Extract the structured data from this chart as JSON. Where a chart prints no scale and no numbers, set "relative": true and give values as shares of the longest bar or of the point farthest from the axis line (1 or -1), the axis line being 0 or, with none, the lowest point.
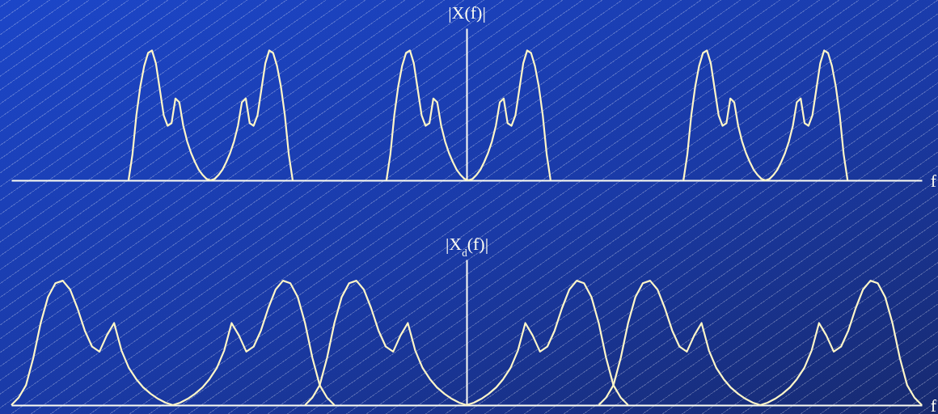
{
  "chart_data": [
    {
      "type": "line",
      "relative": true,
      "ylabel": "|X(f)|",
      "xlabel": "f",
      "tick_labels": false,
      "grid": false,
      "marker": "none",
      "line_style": "solid",
      "categories": [
        null,
        null,
        null,
        null,
        null,
        null,
        null,
        null,
        null,
        null,
        null,
        null,
        null,
        null,
        null,
        null,
        null,
        null,
        null,
        null,
        null,
        null,
        null,
        null,
        null,
        null,
        null,
        null,
        null,
        null,
        null,
        null,
        null,
        null,
        null,
        null,
        null,
        null,
        null,
        null,
        null,
        null,
        null,
        null,
        null,
        null,
        null,
        null,
        null,
        null,
        null,
        null,
        null,
        null,
        null,
        null,
        null,
        null,
        null,
        null,
        null,
        null,
        null,
        null,
        null,
        null,
        null,
        null,
        null,
        null,
        null,
        null,
        null,
        null,
        null,
        null,
        null,
        null,
        null,
        null,
        null,
        null,
        null,
        null,
        null,
        null,
        null,
        null,
        null,
        null,
        null,
        null,
        null,
        null,
        null,
        null,
        null,
        null,
        null,
        null,
        null,
        null,
        null,
        null,
        null,
        null,
        null,
        null,
        null,
        null,
        null,
        null,
        null,
        null,
        null,
        null,
        null,
        null,
        null,
        null,
        null,
        null,
        null,
        null,
        null,
        null,
        null,
        null,
        null,
        null,
        null,
        null,
        null,
        null,
        null,
        null,
        null,
        null,
        null,
        null,
        null,
        null,
        null,
        null,
        null,
        null,
        null,
        null,
        null,
        null,
        null,
        null,
        null,
        null,
        null,
        null,
        null,
        null,
        null,
        null,
        null,
        null,
        null,
        null,
        null,
        null,
        null,
        null,
        null,
        null,
        null,
        null,
        null,
        null,
        null,
        null,
        null,
        null,
        null,
        null,
        null,
        null,
        null,
        null,
        null,
        null,
        null,
        null,
        null,
        null,
        null,
        null,
        null,
        null,
        null,
        null,
        null,
        null,
        null,
        null,
        null,
        null,
        null,
        null,
        null,
        null,
        null,
        null,
        null,
        null,
        null,
        null,
        null,
        null,
        null,
        null,
        null,
        null,
        null,
        null,
        null,
        null,
        null,
        null,
        null,
        null,
        null,
        null,
        null,
        null,
        null,
        null,
        null,
        null
      ],
      "series": [
        {
          "color": "#fff6c8",
          "values": [
            null,
            null,
            null,
            null,
            null,
            null,
            null,
            null,
            null,
            null,
            null,
            null,
            null,
            null,
            null,
            null,
            null,
            null,
            null,
            null,
            null,
            null,
            null,
            null,
            null,
            null,
            null,
            null,
            null,
            null,
            0,
            0.2,
            0.5,
            0.72,
            0.88,
            0.98,
            1.0,
            0.9,
            0.7,
            0.5,
            0.42,
            0.44,
            0.63,
            0.6,
            0.42,
            0.3,
            0.21,
            0.14,
            0.08,
            0.04,
            0.01,
            0,
            0.01,
            0.04,
            0.08,
            0.14,
            0.21,
            0.3,
            0.42,
            0.6,
            0.63,
            0.44,
            0.42,
            0.5,
            0.7,
            0.9,
            1.0,
            0.98,
            0.88,
            0.72,
            0.5,
            0.2,
            0,
            null,
            null,
            null,
            null,
            null,
            null,
            null,
            null,
            null,
            null,
            null,
            null,
            null,
            null,
            null,
            null,
            null,
            null,
            null,
            null,
            null,
            null,
            null,
            null,
            null,
            null,
            null,
            null,
            null,
            null,
            null,
            null,
            null,
            null,
            null,
            null,
            null,
            null,
            null,
            null,
            null,
            null,
            null,
            null,
            null,
            null,
            null,
            null,
            null,
            null,
            null,
            null,
            null,
            null,
            null,
            null,
            null,
            null,
            null,
            null,
            null,
            null,
            null,
            null,
            null,
            null,
            null,
            null,
            null,
            null,
            null,
            null,
            null,
            null,
            null,
            null,
            null,
            null,
            null,
            null,
            null,
            null,
            null,
            null,
            null,
            null,
            null,
            null,
            null,
            null,
            null,
            null,
            null,
            null,
            null,
            null,
            null,
            null,
            null,
            null,
            null,
            null,
            null,
            null,
            null,
            null,
            null,
            null,
            null,
            null,
            null,
            null,
            null,
            null,
            null,
            null,
            null,
            null,
            null,
            null,
            null,
            null,
            null,
            null,
            null,
            null,
            null,
            null,
            null,
            null,
            null,
            null,
            null,
            null,
            null,
            null,
            null,
            null,
            null,
            null,
            null,
            null,
            null,
            null,
            null,
            null,
            null,
            null,
            null,
            null,
            null,
            null,
            null,
            null,
            null,
            null,
            null,
            null,
            null,
            null,
            null
          ]
        },
        {
          "color": "#fff6c8",
          "values": [
            null,
            null,
            null,
            null,
            null,
            null,
            null,
            null,
            null,
            null,
            null,
            null,
            null,
            null,
            null,
            null,
            null,
            null,
            null,
            null,
            null,
            null,
            null,
            null,
            null,
            null,
            null,
            null,
            null,
            null,
            null,
            null,
            null,
            null,
            null,
            null,
            null,
            null,
            null,
            null,
            null,
            null,
            null,
            null,
            null,
            null,
            null,
            null,
            null,
            null,
            null,
            null,
            null,
            null,
            null,
            null,
            null,
            null,
            null,
            null,
            null,
            null,
            null,
            null,
            null,
            null,
            null,
            null,
            null,
            null,
            null,
            null,
            null,
            null,
            null,
            null,
            null,
            null,
            null,
            null,
            null,
            null,
            null,
            null,
            null,
            null,
            null,
            null,
            null,
            null,
            null,
            null,
            null,
            null,
            null,
            null,
            0,
            0.2,
            0.5,
            0.72,
            0.88,
            0.98,
            1.0,
            0.9,
            0.7,
            0.5,
            0.42,
            0.44,
            0.63,
            0.6,
            0.42,
            0.3,
            0.21,
            0.14,
            0.08,
            0.04,
            0.01,
            0,
            0.01,
            0.04,
            0.08,
            0.14,
            0.21,
            0.3,
            0.42,
            0.6,
            0.63,
            0.44,
            0.42,
            0.5,
            0.7,
            0.9,
            1.0,
            0.98,
            0.88,
            0.72,
            0.5,
            0.2,
            0,
            null,
            null,
            null,
            null,
            null,
            null,
            null,
            null,
            null,
            null,
            null,
            null,
            null,
            null,
            null,
            null,
            null,
            null,
            null,
            null,
            null,
            null,
            null,
            null,
            null,
            null,
            null,
            null,
            null,
            null,
            null,
            null,
            null,
            null,
            null,
            null,
            null,
            null,
            null,
            null,
            null,
            null,
            null,
            null,
            null,
            null,
            null,
            null,
            null,
            null,
            null,
            null,
            null,
            null,
            null,
            null,
            null,
            null,
            null,
            null,
            null,
            null,
            null,
            null,
            null,
            null,
            null,
            null,
            null,
            null,
            null,
            null,
            null,
            null,
            null,
            null,
            null,
            null,
            null,
            null,
            null,
            null,
            null,
            null,
            null,
            null,
            null,
            null,
            null,
            null,
            null,
            null,
            null,
            null,
            null
          ]
        },
        {
          "color": "#fff6c8",
          "values": [
            null,
            null,
            null,
            null,
            null,
            null,
            null,
            null,
            null,
            null,
            null,
            null,
            null,
            null,
            null,
            null,
            null,
            null,
            null,
            null,
            null,
            null,
            null,
            null,
            null,
            null,
            null,
            null,
            null,
            null,
            null,
            null,
            null,
            null,
            null,
            null,
            null,
            null,
            null,
            null,
            null,
            null,
            null,
            null,
            null,
            null,
            null,
            null,
            null,
            null,
            null,
            null,
            null,
            null,
            null,
            null,
            null,
            null,
            null,
            null,
            null,
            null,
            null,
            null,
            null,
            null,
            null,
            null,
            null,
            null,
            null,
            null,
            null,
            null,
            null,
            null,
            null,
            null,
            null,
            null,
            null,
            null,
            null,
            null,
            null,
            null,
            null,
            null,
            null,
            null,
            null,
            null,
            null,
            null,
            null,
            null,
            null,
            null,
            null,
            null,
            null,
            null,
            null,
            null,
            null,
            null,
            null,
            null,
            null,
            null,
            null,
            null,
            null,
            null,
            null,
            null,
            null,
            null,
            null,
            null,
            null,
            null,
            null,
            null,
            null,
            null,
            null,
            null,
            null,
            null,
            null,
            null,
            null,
            null,
            null,
            null,
            null,
            null,
            null,
            null,
            null,
            null,
            null,
            null,
            null,
            null,
            null,
            null,
            null,
            null,
            null,
            null,
            null,
            null,
            null,
            null,
            null,
            null,
            null,
            null,
            null,
            null,
            null,
            null,
            null,
            null,
            null,
            null,
            null,
            null,
            null,
            null,
            0,
            0.2,
            0.5,
            0.72,
            0.88,
            0.98,
            1.0,
            0.9,
            0.7,
            0.5,
            0.42,
            0.44,
            0.63,
            0.6,
            0.42,
            0.3,
            0.21,
            0.14,
            0.08,
            0.04,
            0.01,
            0,
            0.01,
            0.04,
            0.08,
            0.14,
            0.21,
            0.3,
            0.42,
            0.6,
            0.63,
            0.44,
            0.42,
            0.5,
            0.7,
            0.9,
            1.0,
            0.98,
            0.88,
            0.72,
            0.5,
            0.2,
            0,
            null,
            null,
            null,
            null,
            null,
            null,
            null,
            null,
            null,
            null,
            null,
            null,
            null,
            null,
            null,
            null,
            null,
            null,
            null
          ]
        }
      ]
    },
    {
      "type": "line",
      "relative": true,
      "ylabel": "|X$_{d}$(f)|",
      "xlabel": "f",
      "tick_labels": false,
      "grid": false,
      "marker": "none",
      "line_style": "solid",
      "categories": [
        null,
        null,
        null,
        null,
        null,
        null,
        null,
        null,
        null,
        null,
        null,
        null,
        null,
        null,
        null,
        null,
        null,
        null,
        null,
        null,
        null,
        null,
        null,
        null,
        null,
        null,
        null,
        null,
        null,
        null,
        null,
        null,
        null,
        null,
        null,
        null,
        null,
        null,
        null,
        null,
        null,
        null,
        null,
        null,
        null,
        null,
        null,
        null,
        null,
        null,
        null,
        null,
        null,
        null,
        null,
        null,
        null,
        null,
        null,
        null,
        null,
        null,
        null,
        null,
        null,
        null,
        null,
        null,
        null,
        null,
        null,
        null,
        null,
        null,
        null,
        null,
        null,
        null,
        null,
        null,
        null,
        null,
        null,
        null,
        null,
        null,
        null,
        null,
        null,
        null,
        null,
        null,
        null,
        null,
        null,
        null,
        null,
        null,
        null,
        null,
        null,
        null,
        null,
        null,
        null,
        null,
        null,
        null,
        null,
        null,
        null,
        null,
        null,
        null,
        null,
        null,
        null,
        null,
        null,
        null,
        null,
        null,
        null,
        null,
        null
      ],
      "series": [
        {
          "color": "#fff6c8",
          "values": [
            0,
            0.06,
            0.16,
            0.38,
            0.66,
            0.87,
            0.98,
            1.0,
            0.93,
            0.78,
            0.6,
            0.47,
            0.43,
            0.56,
            0.66,
            0.44,
            0.3,
            0.21,
            0.14,
            0.09,
            0.05,
            0.02,
            0,
            0.02,
            0.05,
            0.09,
            0.14,
            0.21,
            0.3,
            0.44,
            0.66,
            0.56,
            0.43,
            0.47,
            0.6,
            0.78,
            0.93,
            1.0,
            0.98,
            0.87,
            0.66,
            0.38,
            0.16,
            0.06,
            0,
            null,
            null,
            null,
            null,
            null,
            null,
            null,
            null,
            null,
            null,
            null,
            null,
            null,
            null,
            null,
            null,
            null,
            null,
            null,
            null,
            null,
            null,
            null,
            null,
            null,
            null,
            null,
            null,
            null,
            null,
            null,
            null,
            null,
            null,
            null,
            null,
            null,
            null,
            null,
            null,
            null,
            null,
            null,
            null,
            null,
            null,
            null,
            null,
            null,
            null,
            null,
            null,
            null,
            null,
            null,
            null,
            null,
            null,
            null,
            null,
            null,
            null,
            null,
            null,
            null,
            null,
            null,
            null,
            null,
            null,
            null,
            null,
            null,
            null,
            null,
            null,
            null,
            null,
            null,
            null
          ]
        },
        {
          "color": "#fff6c8",
          "values": [
            null,
            null,
            null,
            null,
            null,
            null,
            null,
            null,
            null,
            null,
            null,
            null,
            null,
            null,
            null,
            null,
            null,
            null,
            null,
            null,
            null,
            null,
            null,
            null,
            null,
            null,
            null,
            null,
            null,
            null,
            null,
            null,
            null,
            null,
            null,
            null,
            null,
            null,
            null,
            null,
            0,
            0.06,
            0.16,
            0.38,
            0.66,
            0.87,
            0.98,
            1.0,
            0.93,
            0.78,
            0.6,
            0.47,
            0.43,
            0.56,
            0.66,
            0.44,
            0.3,
            0.21,
            0.14,
            0.09,
            0.05,
            0.02,
            0,
            0.02,
            0.05,
            0.09,
            0.14,
            0.21,
            0.3,
            0.44,
            0.66,
            0.56,
            0.43,
            0.47,
            0.6,
            0.78,
            0.93,
            1.0,
            0.98,
            0.87,
            0.66,
            0.38,
            0.16,
            0.06,
            0,
            null,
            null,
            null,
            null,
            null,
            null,
            null,
            null,
            null,
            null,
            null,
            null,
            null,
            null,
            null,
            null,
            null,
            null,
            null,
            null,
            null,
            null,
            null,
            null,
            null,
            null,
            null,
            null,
            null,
            null,
            null,
            null,
            null,
            null,
            null,
            null,
            null,
            null,
            null,
            null
          ]
        },
        {
          "color": "#fff6c8",
          "values": [
            null,
            null,
            null,
            null,
            null,
            null,
            null,
            null,
            null,
            null,
            null,
            null,
            null,
            null,
            null,
            null,
            null,
            null,
            null,
            null,
            null,
            null,
            null,
            null,
            null,
            null,
            null,
            null,
            null,
            null,
            null,
            null,
            null,
            null,
            null,
            null,
            null,
            null,
            null,
            null,
            null,
            null,
            null,
            null,
            null,
            null,
            null,
            null,
            null,
            null,
            null,
            null,
            null,
            null,
            null,
            null,
            null,
            null,
            null,
            null,
            null,
            null,
            null,
            null,
            null,
            null,
            null,
            null,
            null,
            null,
            null,
            null,
            null,
            null,
            null,
            null,
            null,
            null,
            null,
            null,
            0,
            0.06,
            0.16,
            0.38,
            0.66,
            0.87,
            0.98,
            1.0,
            0.93,
            0.78,
            0.6,
            0.47,
            0.43,
            0.56,
            0.66,
            0.44,
            0.3,
            0.21,
            0.14,
            0.09,
            0.05,
            0.02,
            0,
            0.02,
            0.05,
            0.09,
            0.14,
            0.21,
            0.3,
            0.44,
            0.66,
            0.56,
            0.43,
            0.47,
            0.6,
            0.78,
            0.93,
            1.0,
            0.98,
            0.87,
            0.66,
            0.38,
            0.16,
            0.06,
            0
          ]
        }
      ]
    }
  ]
}
